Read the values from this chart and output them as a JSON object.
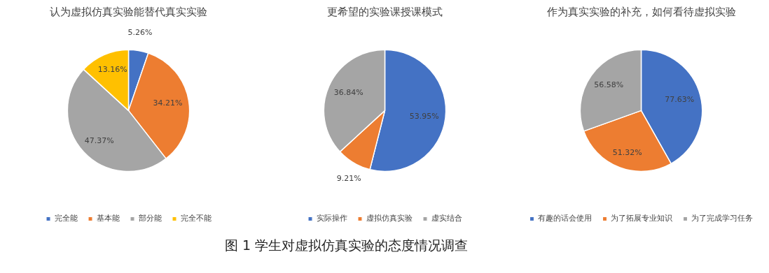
{
  "chart_data": [
    {
      "type": "pie",
      "title": "认为虚拟仿真实验能替代真实实验",
      "categories": [
        "完全能",
        "基本能",
        "部分能",
        "完全不能"
      ],
      "values": [
        5.26,
        34.21,
        47.37,
        13.16
      ],
      "colors": [
        "#4472c4",
        "#ed7d31",
        "#a5a5a5",
        "#ffc000"
      ],
      "value_labels": [
        "5.26%",
        "34.21%",
        "47.37%",
        "13.16%"
      ],
      "legend": "bottom",
      "annotations": [
        "图 1 学生对虚拟仿真实验的态度情况调查"
      ]
    },
    {
      "type": "pie",
      "title": "更希望的实验课授课模式",
      "categories": [
        "实际操作",
        "虚拟仿真实验",
        "虚实结合"
      ],
      "values": [
        53.95,
        9.21,
        36.84
      ],
      "colors": [
        "#4472c4",
        "#ed7d31",
        "#a5a5a5"
      ],
      "value_labels": [
        "53.95%",
        "9.21%",
        "36.84%"
      ],
      "legend": "bottom"
    },
    {
      "type": "pie",
      "title": "作为真实实验的补充，如何看待虚拟实验",
      "categories": [
        "有趣的话会使用",
        "为了拓展专业知识",
        "为了完成学习任务"
      ],
      "values": [
        77.63,
        51.32,
        56.58
      ],
      "colors": [
        "#4472c4",
        "#ed7d31",
        "#a5a5a5"
      ],
      "value_labels": [
        "77.63%",
        "51.32%",
        "56.58%"
      ],
      "legend": "bottom"
    }
  ]
}
